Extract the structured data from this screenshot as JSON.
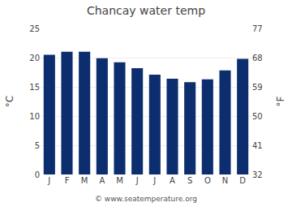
{
  "chart_data": {
    "type": "bar",
    "title": "Chancay water temp",
    "categories": [
      "J",
      "F",
      "M",
      "A",
      "M",
      "J",
      "J",
      "A",
      "S",
      "O",
      "N",
      "D"
    ],
    "values": [
      20.5,
      21.0,
      21.0,
      19.9,
      19.2,
      18.2,
      17.1,
      16.4,
      15.8,
      16.3,
      17.8,
      19.8
    ],
    "color": "#0d2e6e",
    "ylabel": "°C",
    "y2label": "°F",
    "ylim": [
      0,
      25
    ],
    "yticks": [
      0,
      5,
      10,
      15,
      20,
      25
    ],
    "y2lim": [
      32,
      77
    ],
    "y2ticks": [
      32,
      41,
      50,
      59,
      68,
      77
    ],
    "grid": true,
    "annotations": [
      "© www.seatemperature.org"
    ]
  }
}
